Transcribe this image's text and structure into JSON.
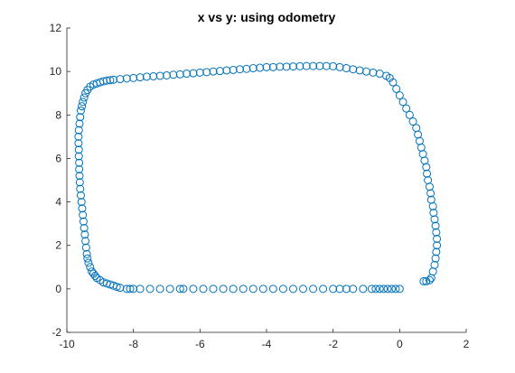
{
  "chart_data": {
    "type": "scatter",
    "title": "x vs y: using odometry",
    "xlabel": "",
    "ylabel": "",
    "xlim": [
      -10,
      2
    ],
    "ylim": [
      -2,
      12
    ],
    "xticks": [
      -10,
      -8,
      -6,
      -4,
      -2,
      0,
      2
    ],
    "yticks": [
      -2,
      0,
      2,
      4,
      6,
      8,
      10,
      12
    ],
    "grid": false,
    "legend": "none",
    "marker": "circle-open",
    "color": "#0072BD",
    "series": [
      {
        "x": [
          0.0,
          -0.12,
          -0.24,
          -0.36,
          -0.48,
          -0.6,
          -0.72,
          -0.84,
          -1.1,
          -1.4,
          -1.6,
          -1.8,
          -2.0,
          -2.3,
          -2.6,
          -2.9,
          -3.2,
          -3.5,
          -3.8,
          -4.1,
          -4.4,
          -4.7,
          -5.0,
          -5.3,
          -5.6,
          -5.9,
          -6.2,
          -6.5,
          -6.6,
          -6.9,
          -7.2,
          -7.5,
          -7.8,
          -8.0,
          -8.1,
          -8.2,
          -8.4,
          -8.5,
          -8.6,
          -8.7,
          -8.8,
          -8.9,
          -9.0,
          -9.1,
          -9.15,
          -9.2,
          -9.25,
          -9.3,
          -9.35,
          -9.38,
          -9.4,
          -9.42,
          -9.44,
          -9.46,
          -9.48,
          -9.5,
          -9.52,
          -9.54,
          -9.56,
          -9.58,
          -9.6,
          -9.61,
          -9.62,
          -9.63,
          -9.63,
          -9.64,
          -9.64,
          -9.65,
          -9.65,
          -9.64,
          -9.62,
          -9.6,
          -9.58,
          -9.55,
          -9.52,
          -9.48,
          -9.44,
          -9.38,
          -9.3,
          -9.2,
          -9.1,
          -9.0,
          -8.9,
          -8.8,
          -8.7,
          -8.6,
          -8.4,
          -8.2,
          -8.0,
          -7.8,
          -7.6,
          -7.4,
          -7.2,
          -7.0,
          -6.8,
          -6.6,
          -6.4,
          -6.2,
          -6.0,
          -5.8,
          -5.6,
          -5.4,
          -5.2,
          -5.0,
          -4.8,
          -4.6,
          -4.4,
          -4.2,
          -4.0,
          -3.8,
          -3.6,
          -3.4,
          -3.2,
          -3.0,
          -2.8,
          -2.6,
          -2.4,
          -2.2,
          -2.0,
          -1.8,
          -1.6,
          -1.4,
          -1.2,
          -1.0,
          -0.8,
          -0.6,
          -0.4,
          -0.3,
          -0.2,
          -0.1,
          0.0,
          0.1,
          0.2,
          0.3,
          0.4,
          0.5,
          0.55,
          0.6,
          0.65,
          0.7,
          0.75,
          0.8,
          0.82,
          0.85,
          0.9,
          0.93,
          0.95,
          1.0,
          1.02,
          1.05,
          1.08,
          1.1,
          1.12,
          1.12,
          1.1,
          1.08,
          1.05,
          1.0,
          0.95,
          0.9,
          0.8,
          0.72
        ],
        "y": [
          0.0,
          0.0,
          0.0,
          0.0,
          0.0,
          0.0,
          0.0,
          0.0,
          0.0,
          0.0,
          0.0,
          0.0,
          0.0,
          0.0,
          0.0,
          0.0,
          0.0,
          0.0,
          0.0,
          0.0,
          0.0,
          0.0,
          0.0,
          0.0,
          0.0,
          0.0,
          0.0,
          0.0,
          0.0,
          0.0,
          0.0,
          0.0,
          0.0,
          0.0,
          0.0,
          0.0,
          0.05,
          0.1,
          0.15,
          0.2,
          0.25,
          0.3,
          0.4,
          0.5,
          0.6,
          0.7,
          0.8,
          1.0,
          1.2,
          1.4,
          1.6,
          1.9,
          2.2,
          2.5,
          2.8,
          3.1,
          3.4,
          3.7,
          4.0,
          4.3,
          4.6,
          4.9,
          5.2,
          5.5,
          5.8,
          6.1,
          6.4,
          6.7,
          7.0,
          7.3,
          7.6,
          7.9,
          8.2,
          8.4,
          8.6,
          8.8,
          9.0,
          9.15,
          9.3,
          9.4,
          9.45,
          9.5,
          9.55,
          9.58,
          9.6,
          9.62,
          9.65,
          9.68,
          9.7,
          9.73,
          9.76,
          9.78,
          9.8,
          9.82,
          9.85,
          9.87,
          9.9,
          9.92,
          9.95,
          9.97,
          10.0,
          10.02,
          10.05,
          10.07,
          10.1,
          10.12,
          10.15,
          10.17,
          10.2,
          10.2,
          10.22,
          10.22,
          10.23,
          10.24,
          10.25,
          10.25,
          10.25,
          10.25,
          10.24,
          10.2,
          10.15,
          10.1,
          10.05,
          10.0,
          9.95,
          9.9,
          9.8,
          9.7,
          9.5,
          9.2,
          8.9,
          8.6,
          8.3,
          8.0,
          7.7,
          7.4,
          7.1,
          6.8,
          6.5,
          6.2,
          5.9,
          5.6,
          5.3,
          5.0,
          4.7,
          4.4,
          4.1,
          3.8,
          3.5,
          3.2,
          2.9,
          2.6,
          2.3,
          2.0,
          1.7,
          1.4,
          1.1,
          0.8,
          0.5,
          0.4,
          0.35,
          0.35
        ]
      }
    ]
  }
}
